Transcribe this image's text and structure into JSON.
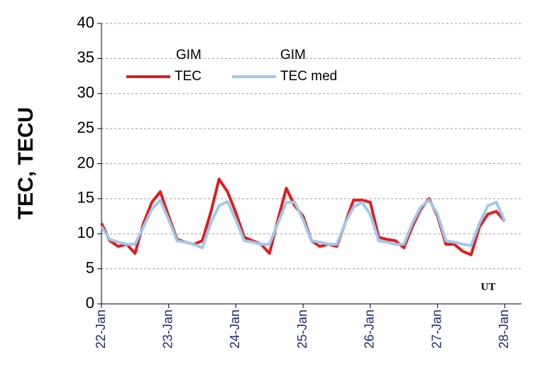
{
  "chart_data": {
    "type": "line",
    "ylabel": "TEC, TECU",
    "annotation": "UT",
    "x": [
      0,
      0.125,
      0.25,
      0.375,
      0.5,
      0.625,
      0.75,
      0.875,
      1,
      1.125,
      1.25,
      1.375,
      1.5,
      1.625,
      1.75,
      1.875,
      2,
      2.125,
      2.25,
      2.375,
      2.5,
      2.625,
      2.75,
      2.875,
      3,
      3.125,
      3.25,
      3.375,
      3.5,
      3.625,
      3.75,
      3.875,
      4,
      4.125,
      4.25,
      4.375,
      4.5,
      4.625,
      4.75,
      4.875,
      5,
      5.125,
      5.25,
      5.375,
      5.5,
      5.625,
      5.75,
      5.875,
      6
    ],
    "xlim": [
      0,
      6.25
    ],
    "xticks": [
      {
        "value": 0,
        "label": "22-Jan"
      },
      {
        "value": 1,
        "label": "23-Jan"
      },
      {
        "value": 2,
        "label": "24-Jan"
      },
      {
        "value": 3,
        "label": "25-Jan"
      },
      {
        "value": 4,
        "label": "26-Jan"
      },
      {
        "value": 5,
        "label": "27-Jan"
      },
      {
        "value": 6,
        "label": "28-Jan"
      }
    ],
    "ylim": [
      0,
      40
    ],
    "yticks": [
      0,
      5,
      10,
      15,
      20,
      25,
      30,
      35,
      40
    ],
    "grid": true,
    "series": [
      {
        "name": [
          "GIM",
          "TEC"
        ],
        "color": "#e31a1c",
        "width": 4,
        "values": [
          11.5,
          9,
          8.2,
          8.5,
          7.2,
          11.5,
          14.5,
          16,
          12.5,
          9.2,
          8.8,
          8.5,
          9,
          13,
          17.8,
          16,
          13,
          9.5,
          9,
          8.5,
          7.2,
          12,
          16.5,
          14,
          12.5,
          9,
          8.2,
          8.5,
          8.2,
          11.5,
          14.8,
          14.8,
          14.5,
          9.5,
          9.2,
          9,
          8,
          11,
          13.5,
          15,
          12.5,
          8.5,
          8.5,
          7.5,
          7,
          11,
          12.8,
          13.2,
          11.8
        ]
      },
      {
        "name": [
          "GIM",
          "TEC med"
        ],
        "color": "#9cc8ee",
        "width": 4,
        "values": [
          11,
          9.2,
          8.8,
          8.5,
          8.5,
          11,
          13.5,
          14.8,
          12,
          9,
          8.8,
          8.5,
          8,
          11.5,
          14,
          14.6,
          12,
          9,
          8.8,
          8.5,
          8.5,
          11.5,
          14.5,
          14.5,
          12,
          9,
          8.8,
          8.5,
          8.5,
          11.5,
          13.8,
          14.5,
          12.8,
          9,
          8.8,
          8.5,
          8.5,
          11.5,
          13.8,
          14.8,
          12.8,
          9,
          8.8,
          8.5,
          8.3,
          11.5,
          14,
          14.5,
          11.8
        ]
      }
    ]
  }
}
